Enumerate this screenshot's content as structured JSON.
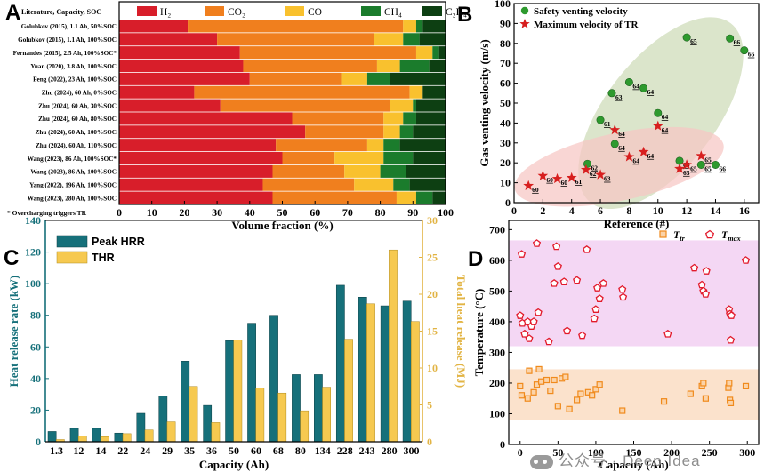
{
  "chart_data": [
    {
      "panel": "A",
      "type": "bar",
      "orientation": "horizontal",
      "stacked": true,
      "xlabel": "Volume fraction (%)",
      "xlim": [
        0,
        100
      ],
      "xticks": [
        "0",
        "10",
        "20",
        "30",
        "40",
        "50",
        "60",
        "70",
        "80",
        "90",
        "100"
      ],
      "header": "Literature, Capacity, SOC",
      "footnote": "* Overcharging triggers TR",
      "legend_position": "top",
      "series": [
        {
          "name": "H₂",
          "color": "#d81e2a"
        },
        {
          "name": "CO₂",
          "color": "#f07f1e"
        },
        {
          "name": "CO",
          "color": "#f9c12e"
        },
        {
          "name": "CH₄",
          "color": "#1b7c2c"
        },
        {
          "name": "C₂H₄",
          "color": "#0d3f12"
        }
      ],
      "categories": [
        "Golubkov (2015), 1.1 Ah, 50%SOC",
        "Golubkov (2015), 1.1 Ah, 100%SOC",
        "Fernandes (2015), 2.5 Ah, 100%SOC*",
        "Yuan (2020), 3.8 Ah, 100%SOC",
        "Feng (2022), 23 Ah, 100%SOC",
        "Zhu (2024), 60 Ah, 0%SOC",
        "Zhu (2024), 60 Ah, 30%SOC",
        "Zhu (2024), 60 Ah, 80%SOC",
        "Zhu (2024), 60 Ah, 100%SOC",
        "Zhu (2024), 60 Ah, 110%SOC",
        "Wang (2023), 86 Ah, 100%SOC*",
        "Wang (2023), 86 Ah, 100%SOC",
        "Yang (2022), 196 Ah, 100%SOC",
        "Wang (2023), 280 Ah, 100%SOC"
      ],
      "values": [
        [
          21,
          66,
          4,
          2,
          7
        ],
        [
          30,
          48,
          9,
          5,
          8
        ],
        [
          37,
          54,
          5,
          2,
          2
        ],
        [
          38,
          41,
          7,
          9,
          5
        ],
        [
          40,
          28,
          8,
          7,
          17
        ],
        [
          23,
          66,
          4,
          0,
          7
        ],
        [
          31,
          52,
          7,
          1,
          9
        ],
        [
          53,
          28,
          6,
          4,
          9
        ],
        [
          57,
          24,
          5,
          4,
          10
        ],
        [
          48,
          28,
          5,
          5,
          14
        ],
        [
          50,
          16,
          15,
          9,
          10
        ],
        [
          47,
          22,
          11,
          8,
          12
        ],
        [
          44,
          28,
          12,
          5,
          11
        ],
        [
          47,
          38,
          6,
          5,
          4
        ]
      ]
    },
    {
      "panel": "B",
      "type": "scatter",
      "xlabel": "Reference (#)",
      "ylabel": "Gas venting velocity (m/s)",
      "xlim": [
        0,
        17
      ],
      "ylim": [
        0,
        100
      ],
      "xticks": [
        "0",
        "2",
        "4",
        "6",
        "8",
        "10",
        "12",
        "14",
        "16"
      ],
      "yticks": [
        "0",
        "10",
        "20",
        "30",
        "40",
        "50",
        "60",
        "70",
        "80",
        "90",
        "100"
      ],
      "legend_position": "top-left",
      "series": [
        {
          "name": "Safety venting velocity",
          "color": "#2e9a2e",
          "marker": "circle",
          "points": [
            [
              5.1,
              19.5
            ],
            [
              6,
              41.5
            ],
            [
              6.8,
              55
            ],
            [
              7,
              29.5
            ],
            [
              8,
              60.5
            ],
            [
              9,
              57.5
            ],
            [
              10,
              45
            ],
            [
              11.5,
              21
            ],
            [
              12,
              83
            ],
            [
              13,
              19
            ],
            [
              14,
              19
            ],
            [
              15,
              82.5
            ],
            [
              16,
              76.5
            ]
          ],
          "labels": [
            "62",
            "61",
            "63",
            "64",
            "64",
            "64",
            "64",
            "65",
            "65",
            "65",
            "66",
            "66",
            "66"
          ]
        },
        {
          "name": "Maximum velocity of TR",
          "color": "#d71f1f",
          "marker": "star",
          "points": [
            [
              1,
              8.5
            ],
            [
              2,
              13.5
            ],
            [
              3,
              12
            ],
            [
              4,
              12.5
            ],
            [
              5,
              16.5
            ],
            [
              6,
              14
            ],
            [
              7,
              36.5
            ],
            [
              8,
              23
            ],
            [
              9,
              25.5
            ],
            [
              10,
              38.5
            ],
            [
              11.5,
              17
            ],
            [
              12,
              19
            ],
            [
              13,
              23.5
            ]
          ],
          "labels": [
            "60",
            "60",
            "60",
            "61",
            "62",
            "63",
            "64",
            "64",
            "64",
            "64",
            "65",
            "65",
            "65"
          ]
        }
      ]
    },
    {
      "panel": "C",
      "type": "bar",
      "xlabel": "Capacity (Ah)",
      "ylabel": "Heat release rate (kW)",
      "y2label": "Total heat release (MJ)",
      "ylim": [
        0,
        140
      ],
      "y2lim": [
        0,
        30
      ],
      "yticks": [
        "0",
        "20",
        "40",
        "60",
        "80",
        "100",
        "120",
        "140"
      ],
      "y2ticks": [
        "0",
        "5",
        "10",
        "15",
        "20",
        "25",
        "30"
      ],
      "legend_position": "top-left",
      "categories": [
        "1.3",
        "12",
        "14",
        "22",
        "24",
        "29",
        "35",
        "36",
        "50",
        "60",
        "68",
        "80",
        "134",
        "228",
        "243",
        "280",
        "300"
      ],
      "series": [
        {
          "name": "Peak HRR",
          "color": "#16707a",
          "axis": "left",
          "values": [
            6.5,
            8.5,
            8.5,
            5.5,
            18,
            29,
            51,
            23,
            64,
            75,
            80,
            42.5,
            42.5,
            99,
            91.5,
            86,
            89
          ]
        },
        {
          "name": "THR",
          "color": "#f6c950",
          "axis": "right",
          "values": [
            0.3,
            0.8,
            0.7,
            1.1,
            1.6,
            2.7,
            7.5,
            2.6,
            13.8,
            7.3,
            6.6,
            4.2,
            7.4,
            13.9,
            18.7,
            26.0,
            16.3
          ]
        }
      ]
    },
    {
      "panel": "D",
      "type": "scatter",
      "xlabel": "Capacity (Ah)",
      "ylabel": "Temperature (°C)",
      "xlim": [
        -15,
        315
      ],
      "ylim": [
        0,
        730
      ],
      "xticks": [
        "0",
        "50",
        "100",
        "150",
        "200",
        "250",
        "300"
      ],
      "yticks": [
        "0",
        "100",
        "200",
        "300",
        "400",
        "500",
        "600",
        "700"
      ],
      "legend_position": "top-right",
      "bands": [
        {
          "range": [
            320,
            665
          ],
          "color": "#f4d7f4"
        },
        {
          "range": [
            80,
            245
          ],
          "color": "#fbe2cc"
        }
      ],
      "series": [
        {
          "name": "T_tr",
          "color": "#f08a1c",
          "marker": "square",
          "points": [
            [
              0,
              190
            ],
            [
              2,
              160
            ],
            [
              10,
              150
            ],
            [
              12,
              240
            ],
            [
              18,
              170
            ],
            [
              22,
              195
            ],
            [
              25,
              245
            ],
            [
              28,
              205
            ],
            [
              35,
              210
            ],
            [
              40,
              175
            ],
            [
              45,
              210
            ],
            [
              50,
              125
            ],
            [
              55,
              215
            ],
            [
              60,
              220
            ],
            [
              65,
              115
            ],
            [
              75,
              145
            ],
            [
              80,
              165
            ],
            [
              90,
              170
            ],
            [
              95,
              160
            ],
            [
              100,
              180
            ],
            [
              105,
              195
            ],
            [
              135,
              110
            ],
            [
              190,
              140
            ],
            [
              225,
              165
            ],
            [
              240,
              190
            ],
            [
              242,
              200
            ],
            [
              245,
              150
            ],
            [
              275,
              185
            ],
            [
              276,
              200
            ],
            [
              277,
              145
            ],
            [
              278,
              135
            ],
            [
              298,
              190
            ]
          ]
        },
        {
          "name": "T_max",
          "color": "#e21a2b",
          "marker": "pentagon",
          "points": [
            [
              0,
              420
            ],
            [
              2,
              620
            ],
            [
              3,
              395
            ],
            [
              6,
              360
            ],
            [
              10,
              400
            ],
            [
              12,
              345
            ],
            [
              15,
              385
            ],
            [
              18,
              400
            ],
            [
              22,
              655
            ],
            [
              24,
              430
            ],
            [
              38,
              335
            ],
            [
              45,
              525
            ],
            [
              48,
              645
            ],
            [
              50,
              580
            ],
            [
              58,
              530
            ],
            [
              62,
              370
            ],
            [
              75,
              535
            ],
            [
              82,
              355
            ],
            [
              88,
              635
            ],
            [
              98,
              410
            ],
            [
              100,
              440
            ],
            [
              102,
              510
            ],
            [
              105,
              475
            ],
            [
              110,
              525
            ],
            [
              135,
              505
            ],
            [
              136,
              480
            ],
            [
              195,
              360
            ],
            [
              230,
              575
            ],
            [
              240,
              520
            ],
            [
              242,
              500
            ],
            [
              245,
              490
            ],
            [
              246,
              565
            ],
            [
              276,
              440
            ],
            [
              277,
              425
            ],
            [
              278,
              340
            ],
            [
              279,
              420
            ],
            [
              298,
              600
            ]
          ]
        }
      ]
    }
  ],
  "watermark": "公众号 · Deep Idea"
}
